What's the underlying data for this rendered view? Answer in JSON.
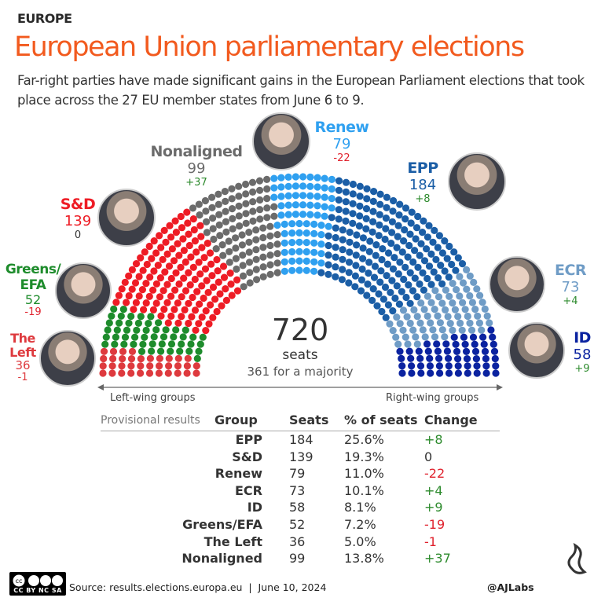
{
  "header": {
    "kicker": "EUROPE",
    "title": "European Union parliamentary elections",
    "subtitle": "Far-right parties have made significant gains in the European Parliament elections that took place across the 27 EU member states from June 6 to 9."
  },
  "chart_data": {
    "type": "hemicycle",
    "total_seats": 720,
    "center_value": "720",
    "center_unit": "seats",
    "majority_note": "361 for a majority",
    "axis_left": "Left-wing groups",
    "axis_right": "Right-wing groups",
    "order_left_to_right": [
      "The Left",
      "Greens/EFA",
      "S&D",
      "Nonaligned",
      "Renew",
      "EPP",
      "ECR",
      "ID"
    ],
    "groups": [
      {
        "name": "The Left",
        "seats": 36,
        "change": "-1",
        "color": "#de3a3e"
      },
      {
        "name": "Greens/EFA",
        "seats": 52,
        "change": "-19",
        "color": "#1e8c2c"
      },
      {
        "name": "S&D",
        "seats": 139,
        "change": "0",
        "color": "#ee1c25"
      },
      {
        "name": "Nonaligned",
        "seats": 99,
        "change": "+37",
        "color": "#6b6b6b"
      },
      {
        "name": "Renew",
        "seats": 79,
        "change": "-22",
        "color": "#2fa0f0"
      },
      {
        "name": "EPP",
        "seats": 184,
        "change": "+8",
        "color": "#1b5ea6"
      },
      {
        "name": "ECR",
        "seats": 73,
        "change": "+4",
        "color": "#6f9cc6"
      },
      {
        "name": "ID",
        "seats": 58,
        "change": "+9",
        "color": "#0b23a0"
      }
    ]
  },
  "labels": {
    "left": {
      "name": "The Left",
      "seats": "36",
      "change": "-1"
    },
    "greens": {
      "name": "Greens/\nEFA",
      "seats": "52",
      "change": "-19"
    },
    "sd": {
      "name": "S&D",
      "seats": "139",
      "change": "0"
    },
    "nonaligned": {
      "name": "Nonaligned",
      "seats": "99",
      "change": "+37"
    },
    "renew": {
      "name": "Renew",
      "seats": "79",
      "change": "-22"
    },
    "epp": {
      "name": "EPP",
      "seats": "184",
      "change": "+8"
    },
    "ecr": {
      "name": "ECR",
      "seats": "73",
      "change": "+4"
    },
    "id": {
      "name": "ID",
      "seats": "58",
      "change": "+9"
    }
  },
  "table": {
    "caption": "Provisional results",
    "headers": [
      "Group",
      "Seats",
      "% of seats",
      "Change"
    ],
    "rows": [
      [
        "EPP",
        "184",
        "25.6%",
        "+8"
      ],
      [
        "S&D",
        "139",
        "19.3%",
        "0"
      ],
      [
        "Renew",
        "79",
        "11.0%",
        "-22"
      ],
      [
        "ECR",
        "73",
        "10.1%",
        "+4"
      ],
      [
        "ID",
        "58",
        "8.1%",
        "+9"
      ],
      [
        "Greens/EFA",
        "52",
        "7.2%",
        "-19"
      ],
      [
        "The Left",
        "36",
        "5.0%",
        "-1"
      ],
      [
        "Nonaligned",
        "99",
        "13.8%",
        "+37"
      ]
    ]
  },
  "colors": {
    "title": "#f25a1e",
    "positive": "#2e8b2e",
    "negative": "#e0232e",
    "neutral": "#333333"
  },
  "footer": {
    "license": "CC BY NC SA",
    "source": "Source: results.elections.europa.eu  |  June 10, 2024",
    "handle": "@AJLabs"
  }
}
